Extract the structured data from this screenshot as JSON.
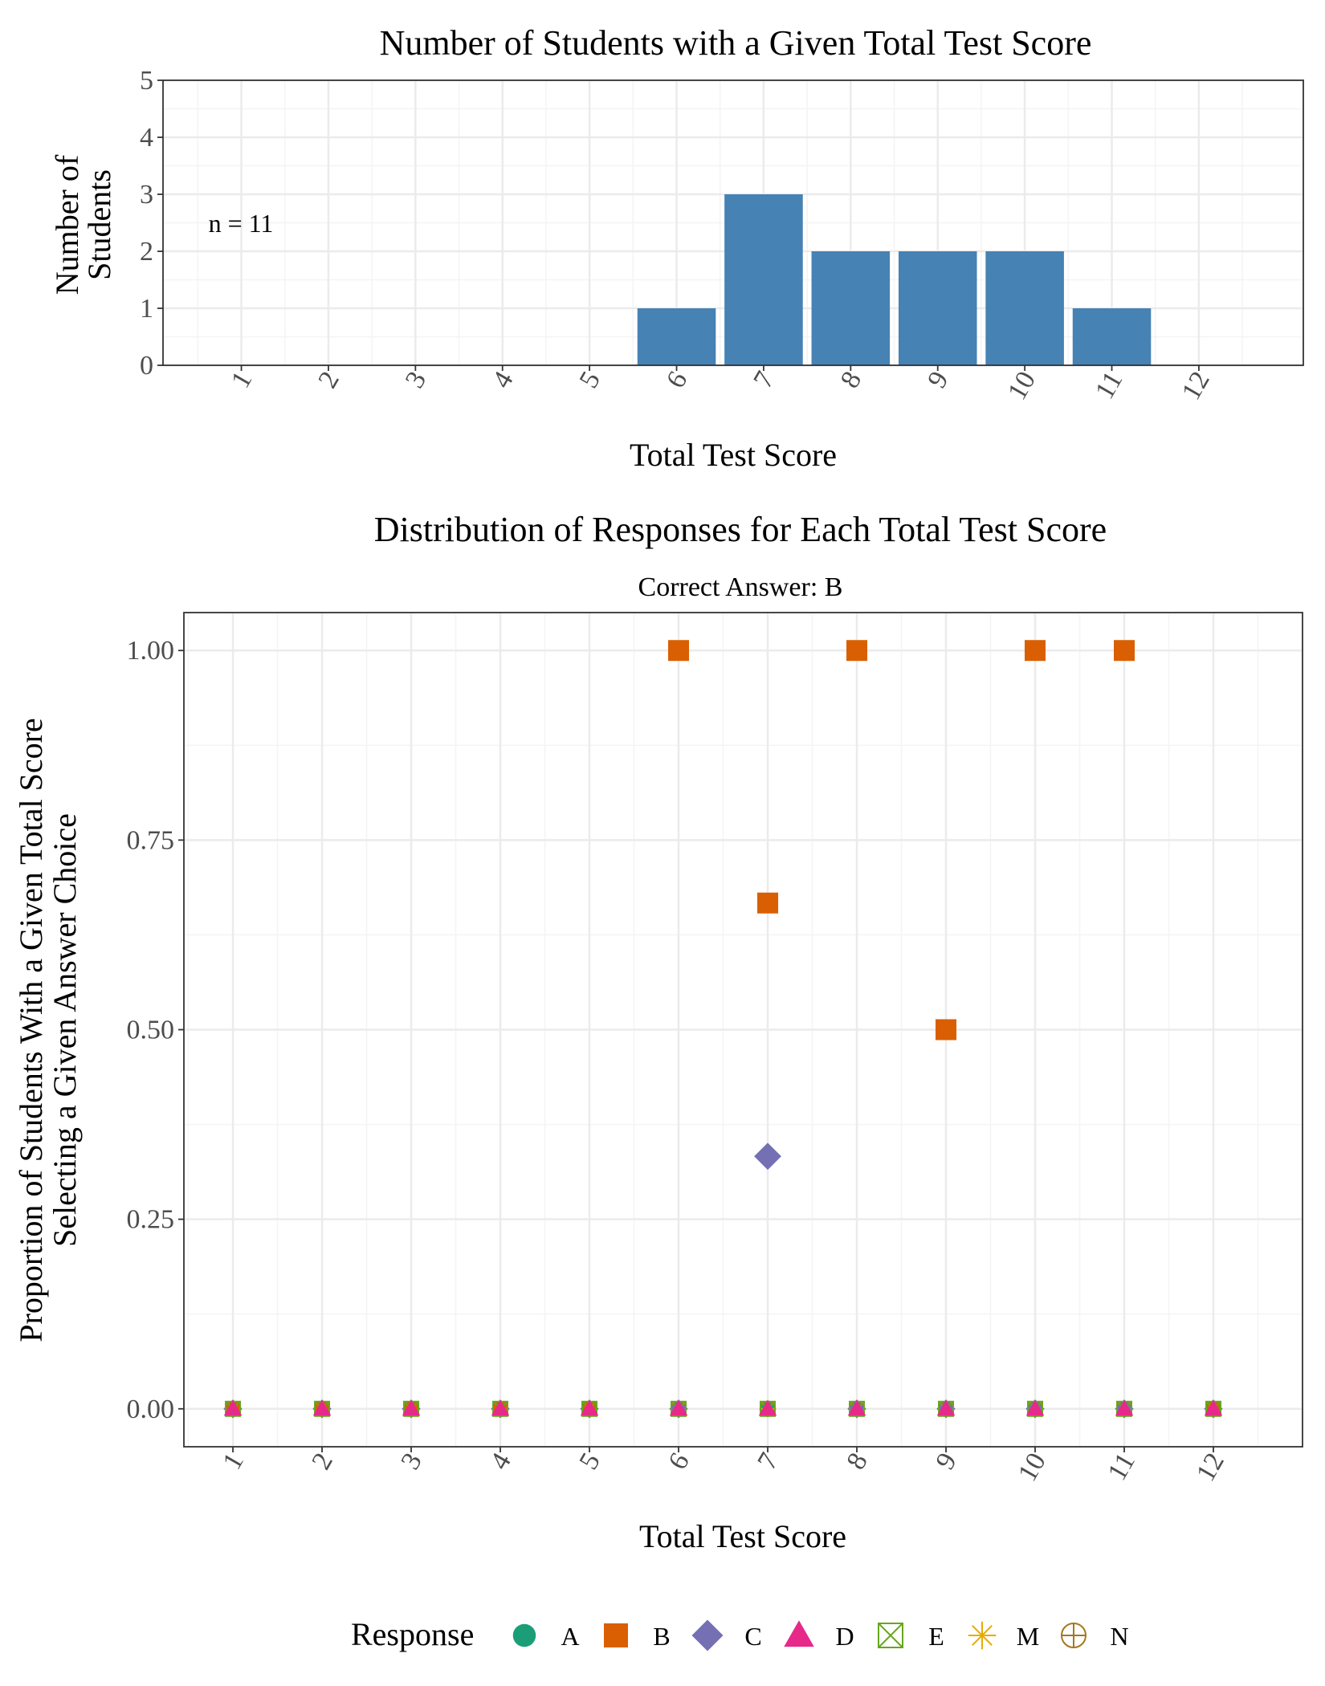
{
  "colors": {
    "bar": "#4682B4",
    "A": "#1B9E77",
    "B": "#D95F02",
    "C": "#7570B3",
    "D": "#E7298A",
    "E": "#66A61E",
    "M": "#E6AB02",
    "N": "#A6761D",
    "grid_major": "#EBEBEB",
    "grid_minor": "#F4F4F4",
    "panel_border": "#333333",
    "tick_text": "#4D4D4D"
  },
  "chart_data": [
    {
      "type": "bar",
      "title": "Number of Students with a Given Total Test Score",
      "xlabel": "Total Test Score",
      "ylabel": [
        "Number of",
        "Students"
      ],
      "annotation": "n = 11",
      "categories": [
        "1",
        "2",
        "3",
        "4",
        "5",
        "6",
        "7",
        "8",
        "9",
        "10",
        "11",
        "12"
      ],
      "values": [
        0,
        0,
        0,
        0,
        0,
        1,
        3,
        2,
        2,
        2,
        1,
        0
      ],
      "y_ticks": [
        "0",
        "1",
        "2",
        "3",
        "4",
        "5"
      ],
      "ylim": [
        0,
        5
      ],
      "grid": true
    },
    {
      "type": "scatter",
      "title": "Distribution of Responses for Each Total Test Score",
      "subtitle": "Correct Answer: B",
      "xlabel": "Total Test Score",
      "ylabel": [
        "Proportion of Students With a Given Total Score",
        "Selecting a Given Answer Choice"
      ],
      "categories": [
        "1",
        "2",
        "3",
        "4",
        "5",
        "6",
        "7",
        "8",
        "9",
        "10",
        "11",
        "12"
      ],
      "y_ticks": [
        "0.00",
        "0.25",
        "0.50",
        "0.75",
        "1.00"
      ],
      "ylim": [
        0,
        1
      ],
      "grid": true,
      "legend_title": "Response",
      "legend_position": "bottom",
      "series": [
        {
          "name": "A",
          "shape": "circle",
          "values": [
            0,
            0,
            0,
            0,
            0,
            0,
            0,
            0,
            0.5,
            0,
            0,
            0
          ]
        },
        {
          "name": "B",
          "shape": "square",
          "values": [
            0,
            0,
            0,
            0,
            0,
            1,
            0.667,
            1,
            0.5,
            1,
            1,
            0
          ]
        },
        {
          "name": "C",
          "shape": "diamond",
          "values": [
            0,
            0,
            0,
            0,
            0,
            0,
            0.333,
            0,
            0,
            0,
            0,
            0
          ]
        },
        {
          "name": "D",
          "shape": "triangle",
          "values": [
            0,
            0,
            0,
            0,
            0,
            0,
            0,
            0,
            0,
            0,
            0,
            0
          ]
        },
        {
          "name": "E",
          "shape": "boxcross",
          "values": [
            0,
            0,
            0,
            0,
            0,
            0,
            0,
            0,
            0,
            0,
            0,
            0
          ]
        },
        {
          "name": "M",
          "shape": "asterisk",
          "values": [
            0,
            0,
            0,
            0,
            0,
            0,
            0,
            0,
            0,
            0,
            0,
            0
          ]
        },
        {
          "name": "N",
          "shape": "circleplus",
          "values": [
            0,
            0,
            0,
            0,
            0,
            0,
            0,
            0,
            0,
            0,
            0,
            0
          ]
        }
      ]
    }
  ]
}
